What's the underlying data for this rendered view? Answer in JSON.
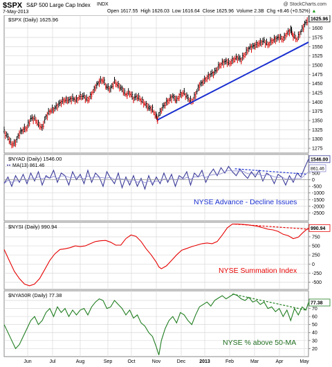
{
  "header": {
    "symbol": "$SPX",
    "name": "S&P 500 Large Cap Index",
    "exchange": "INDX",
    "date": "7-May-2013",
    "watermark": "@ StockCharts.com",
    "quote": {
      "open_label": "Open",
      "open": "1617.55",
      "high_label": "High",
      "high": "1626.03",
      "low_label": "Low",
      "low": "1616.64",
      "close_label": "Close",
      "close": "1625.96",
      "volume_label": "Volume",
      "volume": "2.3B",
      "chg_label": "Chg",
      "chg": "+8.46 (+0.52%)",
      "chg_arrow": "▲"
    }
  },
  "colors": {
    "price_up": "#000000",
    "price_down": "#dd0000",
    "trendline": "#1a2fd0",
    "nyad": "#3a3a9a",
    "nyad_text": "#1a2fd0",
    "nysi": "#e60000",
    "nysi_text": "#e60000",
    "nya50r": "#1f7d1f",
    "nya50r_text": "#1f6d1f",
    "grid": "#d8d8d8",
    "tag_bg": "#ffffff"
  },
  "x_axis": {
    "months": [
      "Jun",
      "Jul",
      "Aug",
      "Sep",
      "Oct",
      "Nov",
      "Dec",
      "2013",
      "Feb",
      "Mar",
      "Apr",
      "May"
    ]
  },
  "chart_data": [
    {
      "type": "line",
      "panel": "price",
      "title": "$SPX (Daily) 1625.96",
      "last_tag": "1625.96",
      "ylim": [
        1262,
        1635
      ],
      "yticks": [
        "1275",
        "1300",
        "1325",
        "1350",
        "1375",
        "1400",
        "1425",
        "1450",
        "1475",
        "1500",
        "1525",
        "1550",
        "1575",
        "1600"
      ],
      "yticks_values": [
        1275,
        1300,
        1325,
        1350,
        1375,
        1400,
        1425,
        1450,
        1475,
        1500,
        1525,
        1550,
        1575,
        1600
      ],
      "x_range": [
        0,
        240
      ],
      "close": [
        [
          0,
          1320
        ],
        [
          3,
          1305
        ],
        [
          6,
          1285
        ],
        [
          9,
          1290
        ],
        [
          12,
          1315
        ],
        [
          15,
          1325
        ],
        [
          18,
          1330
        ],
        [
          21,
          1355
        ],
        [
          24,
          1355
        ],
        [
          27,
          1340
        ],
        [
          30,
          1330
        ],
        [
          33,
          1360
        ],
        [
          36,
          1375
        ],
        [
          39,
          1380
        ],
        [
          42,
          1390
        ],
        [
          45,
          1400
        ],
        [
          48,
          1405
        ],
        [
          51,
          1405
        ],
        [
          54,
          1410
        ],
        [
          57,
          1405
        ],
        [
          60,
          1415
        ],
        [
          63,
          1415
        ],
        [
          66,
          1405
        ],
        [
          69,
          1420
        ],
        [
          72,
          1440
        ],
        [
          75,
          1455
        ],
        [
          78,
          1460
        ],
        [
          81,
          1440
        ],
        [
          84,
          1435
        ],
        [
          87,
          1455
        ],
        [
          90,
          1445
        ],
        [
          93,
          1435
        ],
        [
          96,
          1420
        ],
        [
          99,
          1425
        ],
        [
          102,
          1410
        ],
        [
          105,
          1415
        ],
        [
          108,
          1405
        ],
        [
          111,
          1395
        ],
        [
          114,
          1385
        ],
        [
          117,
          1380
        ],
        [
          120,
          1360
        ],
        [
          121,
          1355
        ],
        [
          124,
          1380
        ],
        [
          127,
          1395
        ],
        [
          130,
          1405
        ],
        [
          133,
          1415
        ],
        [
          136,
          1405
        ],
        [
          139,
          1420
        ],
        [
          142,
          1425
        ],
        [
          145,
          1410
        ],
        [
          148,
          1400
        ],
        [
          151,
          1420
        ],
        [
          154,
          1445
        ],
        [
          157,
          1455
        ],
        [
          160,
          1465
        ],
        [
          163,
          1475
        ],
        [
          166,
          1480
        ],
        [
          169,
          1495
        ],
        [
          172,
          1505
        ],
        [
          175,
          1510
        ],
        [
          178,
          1505
        ],
        [
          181,
          1515
        ],
        [
          184,
          1520
        ],
        [
          187,
          1515
        ],
        [
          190,
          1530
        ],
        [
          193,
          1545
        ],
        [
          196,
          1550
        ],
        [
          199,
          1555
        ],
        [
          202,
          1560
        ],
        [
          205,
          1565
        ],
        [
          208,
          1555
        ],
        [
          211,
          1565
        ],
        [
          214,
          1570
        ],
        [
          217,
          1575
        ],
        [
          220,
          1570
        ],
        [
          223,
          1585
        ],
        [
          226,
          1595
        ],
        [
          228,
          1580
        ],
        [
          231,
          1570
        ],
        [
          234,
          1590
        ],
        [
          237,
          1610
        ],
        [
          240,
          1626
        ]
      ],
      "trendline": [
        [
          121,
          1352
        ],
        [
          240,
          1562
        ]
      ],
      "annotations": []
    },
    {
      "type": "line",
      "panel": "nyad",
      "title": "$NYAD (Daily) 1546.00",
      "series": [
        {
          "name": "$NYAD (Daily) 1546.00"
        },
        {
          "name": "MA(13) 861.46"
        }
      ],
      "last_tag": "1546.00",
      "ma_tag": "861.46",
      "ylim": [
        -3100,
        1900
      ],
      "yticks": [
        "1000",
        "500",
        "0",
        "-500",
        "-1000",
        "-1500",
        "-2000",
        "-2500"
      ],
      "yticks_values": [
        1000,
        500,
        0,
        -500,
        -1000,
        -1500,
        -2000,
        -2500
      ],
      "x_range": [
        0,
        240
      ],
      "values": [
        [
          0,
          -300
        ],
        [
          3,
          200
        ],
        [
          6,
          -500
        ],
        [
          9,
          300
        ],
        [
          12,
          -200
        ],
        [
          15,
          400
        ],
        [
          18,
          -300
        ],
        [
          21,
          500
        ],
        [
          24,
          -100
        ],
        [
          27,
          600
        ],
        [
          30,
          -400
        ],
        [
          33,
          300
        ],
        [
          36,
          100
        ],
        [
          39,
          700
        ],
        [
          42,
          -200
        ],
        [
          45,
          500
        ],
        [
          48,
          300
        ],
        [
          51,
          -400
        ],
        [
          54,
          600
        ],
        [
          57,
          0
        ],
        [
          60,
          400
        ],
        [
          63,
          -300
        ],
        [
          66,
          700
        ],
        [
          69,
          -200
        ],
        [
          72,
          500
        ],
        [
          75,
          200
        ],
        [
          78,
          -500
        ],
        [
          81,
          600
        ],
        [
          84,
          100
        ],
        [
          87,
          -300
        ],
        [
          90,
          500
        ],
        [
          93,
          -600
        ],
        [
          96,
          200
        ],
        [
          99,
          -400
        ],
        [
          102,
          300
        ],
        [
          105,
          -500
        ],
        [
          108,
          100
        ],
        [
          111,
          -700
        ],
        [
          114,
          300
        ],
        [
          117,
          -400
        ],
        [
          120,
          200
        ],
        [
          123,
          -300
        ],
        [
          126,
          500
        ],
        [
          129,
          -200
        ],
        [
          132,
          400
        ],
        [
          135,
          -500
        ],
        [
          138,
          300
        ],
        [
          141,
          100
        ],
        [
          144,
          600
        ],
        [
          147,
          -400
        ],
        [
          150,
          500
        ],
        [
          153,
          200
        ],
        [
          156,
          700
        ],
        [
          159,
          -200
        ],
        [
          162,
          400
        ],
        [
          165,
          800
        ],
        [
          168,
          300
        ],
        [
          171,
          900
        ],
        [
          174,
          500
        ],
        [
          177,
          1000
        ],
        [
          180,
          600
        ],
        [
          183,
          300
        ],
        [
          186,
          800
        ],
        [
          189,
          400
        ],
        [
          192,
          100
        ],
        [
          195,
          600
        ],
        [
          198,
          200
        ],
        [
          201,
          700
        ],
        [
          204,
          -100
        ],
        [
          207,
          500
        ],
        [
          210,
          300
        ],
        [
          213,
          -300
        ],
        [
          216,
          400
        ],
        [
          219,
          200
        ],
        [
          222,
          -400
        ],
        [
          225,
          300
        ],
        [
          228,
          -200
        ],
        [
          231,
          500
        ],
        [
          234,
          200
        ],
        [
          237,
          900
        ],
        [
          240,
          1546
        ]
      ],
      "trendline": [
        [
          182,
          820
        ],
        [
          238,
          420
        ]
      ],
      "annotations": [
        "NYSE Advance - Decline Issues"
      ]
    },
    {
      "type": "line",
      "panel": "nysi",
      "title": "$NYSI (Daily) 990.94",
      "last_tag": "990.94",
      "ylim": [
        -700,
        1150
      ],
      "yticks": [
        "1000",
        "750",
        "500",
        "250",
        "0",
        "-250",
        "-500"
      ],
      "yticks_values": [
        1000,
        750,
        500,
        250,
        0,
        -250,
        -500
      ],
      "x_range": [
        0,
        240
      ],
      "values": [
        [
          0,
          400
        ],
        [
          4,
          100
        ],
        [
          8,
          -200
        ],
        [
          12,
          -400
        ],
        [
          16,
          -550
        ],
        [
          20,
          -600
        ],
        [
          24,
          -550
        ],
        [
          28,
          -400
        ],
        [
          32,
          -150
        ],
        [
          36,
          100
        ],
        [
          40,
          280
        ],
        [
          44,
          400
        ],
        [
          48,
          420
        ],
        [
          52,
          450
        ],
        [
          56,
          500
        ],
        [
          60,
          480
        ],
        [
          64,
          500
        ],
        [
          68,
          560
        ],
        [
          72,
          620
        ],
        [
          76,
          640
        ],
        [
          80,
          650
        ],
        [
          84,
          600
        ],
        [
          88,
          520
        ],
        [
          92,
          520
        ],
        [
          96,
          700
        ],
        [
          100,
          800
        ],
        [
          104,
          760
        ],
        [
          108,
          620
        ],
        [
          112,
          420
        ],
        [
          116,
          250
        ],
        [
          120,
          50
        ],
        [
          122,
          -80
        ],
        [
          124,
          -130
        ],
        [
          128,
          -50
        ],
        [
          132,
          100
        ],
        [
          136,
          250
        ],
        [
          140,
          380
        ],
        [
          144,
          430
        ],
        [
          148,
          480
        ],
        [
          152,
          520
        ],
        [
          156,
          560
        ],
        [
          160,
          580
        ],
        [
          164,
          560
        ],
        [
          168,
          620
        ],
        [
          172,
          800
        ],
        [
          176,
          1000
        ],
        [
          180,
          1100
        ],
        [
          184,
          1100
        ],
        [
          188,
          1090
        ],
        [
          192,
          1080
        ],
        [
          196,
          1060
        ],
        [
          200,
          1040
        ],
        [
          204,
          1000
        ],
        [
          208,
          960
        ],
        [
          212,
          940
        ],
        [
          216,
          900
        ],
        [
          220,
          820
        ],
        [
          224,
          780
        ],
        [
          228,
          700
        ],
        [
          232,
          740
        ],
        [
          236,
          880
        ],
        [
          240,
          991
        ]
      ],
      "trendline": [
        [
          182,
          1100
        ],
        [
          240,
          960
        ]
      ],
      "annotations": [
        "NYSE Summation Index"
      ]
    },
    {
      "type": "line",
      "panel": "nya50r",
      "title": "$NYA50R (Daily) 77.38",
      "last_tag": "77.38",
      "ylim": [
        10,
        92
      ],
      "yticks": [
        "80",
        "70",
        "60",
        "50",
        "40",
        "30",
        "20"
      ],
      "yticks_values": [
        80,
        70,
        60,
        50,
        40,
        30,
        20
      ],
      "x_range": [
        0,
        240
      ],
      "values": [
        [
          0,
          50
        ],
        [
          3,
          40
        ],
        [
          6,
          30
        ],
        [
          9,
          20
        ],
        [
          12,
          25
        ],
        [
          15,
          35
        ],
        [
          18,
          45
        ],
        [
          21,
          55
        ],
        [
          24,
          60
        ],
        [
          27,
          50
        ],
        [
          30,
          55
        ],
        [
          33,
          65
        ],
        [
          36,
          70
        ],
        [
          39,
          60
        ],
        [
          42,
          72
        ],
        [
          45,
          65
        ],
        [
          48,
          70
        ],
        [
          51,
          60
        ],
        [
          54,
          68
        ],
        [
          57,
          62
        ],
        [
          60,
          68
        ],
        [
          63,
          70
        ],
        [
          66,
          62
        ],
        [
          69,
          72
        ],
        [
          72,
          78
        ],
        [
          75,
          82
        ],
        [
          78,
          80
        ],
        [
          81,
          70
        ],
        [
          84,
          72
        ],
        [
          87,
          80
        ],
        [
          90,
          75
        ],
        [
          93,
          70
        ],
        [
          96,
          62
        ],
        [
          99,
          68
        ],
        [
          102,
          58
        ],
        [
          105,
          62
        ],
        [
          108,
          52
        ],
        [
          111,
          48
        ],
        [
          114,
          40
        ],
        [
          117,
          35
        ],
        [
          120,
          22
        ],
        [
          122,
          12
        ],
        [
          124,
          30
        ],
        [
          127,
          45
        ],
        [
          130,
          55
        ],
        [
          133,
          60
        ],
        [
          136,
          52
        ],
        [
          139,
          65
        ],
        [
          142,
          62
        ],
        [
          145,
          55
        ],
        [
          148,
          50
        ],
        [
          151,
          62
        ],
        [
          154,
          72
        ],
        [
          157,
          75
        ],
        [
          160,
          78
        ],
        [
          163,
          73
        ],
        [
          166,
          80
        ],
        [
          169,
          83
        ],
        [
          172,
          86
        ],
        [
          175,
          82
        ],
        [
          178,
          85
        ],
        [
          181,
          88
        ],
        [
          184,
          86
        ],
        [
          187,
          82
        ],
        [
          190,
          80
        ],
        [
          193,
          84
        ],
        [
          196,
          78
        ],
        [
          199,
          80
        ],
        [
          202,
          75
        ],
        [
          205,
          78
        ],
        [
          208,
          70
        ],
        [
          211,
          72
        ],
        [
          214,
          66
        ],
        [
          217,
          70
        ],
        [
          220,
          60
        ],
        [
          223,
          68
        ],
        [
          226,
          55
        ],
        [
          229,
          70
        ],
        [
          232,
          62
        ],
        [
          235,
          72
        ],
        [
          238,
          68
        ],
        [
          240,
          77.38
        ]
      ],
      "trendline": [
        [
          180,
          88
        ],
        [
          238,
          68
        ]
      ],
      "annotations": [
        "NYSE % above 50-MA"
      ]
    }
  ]
}
